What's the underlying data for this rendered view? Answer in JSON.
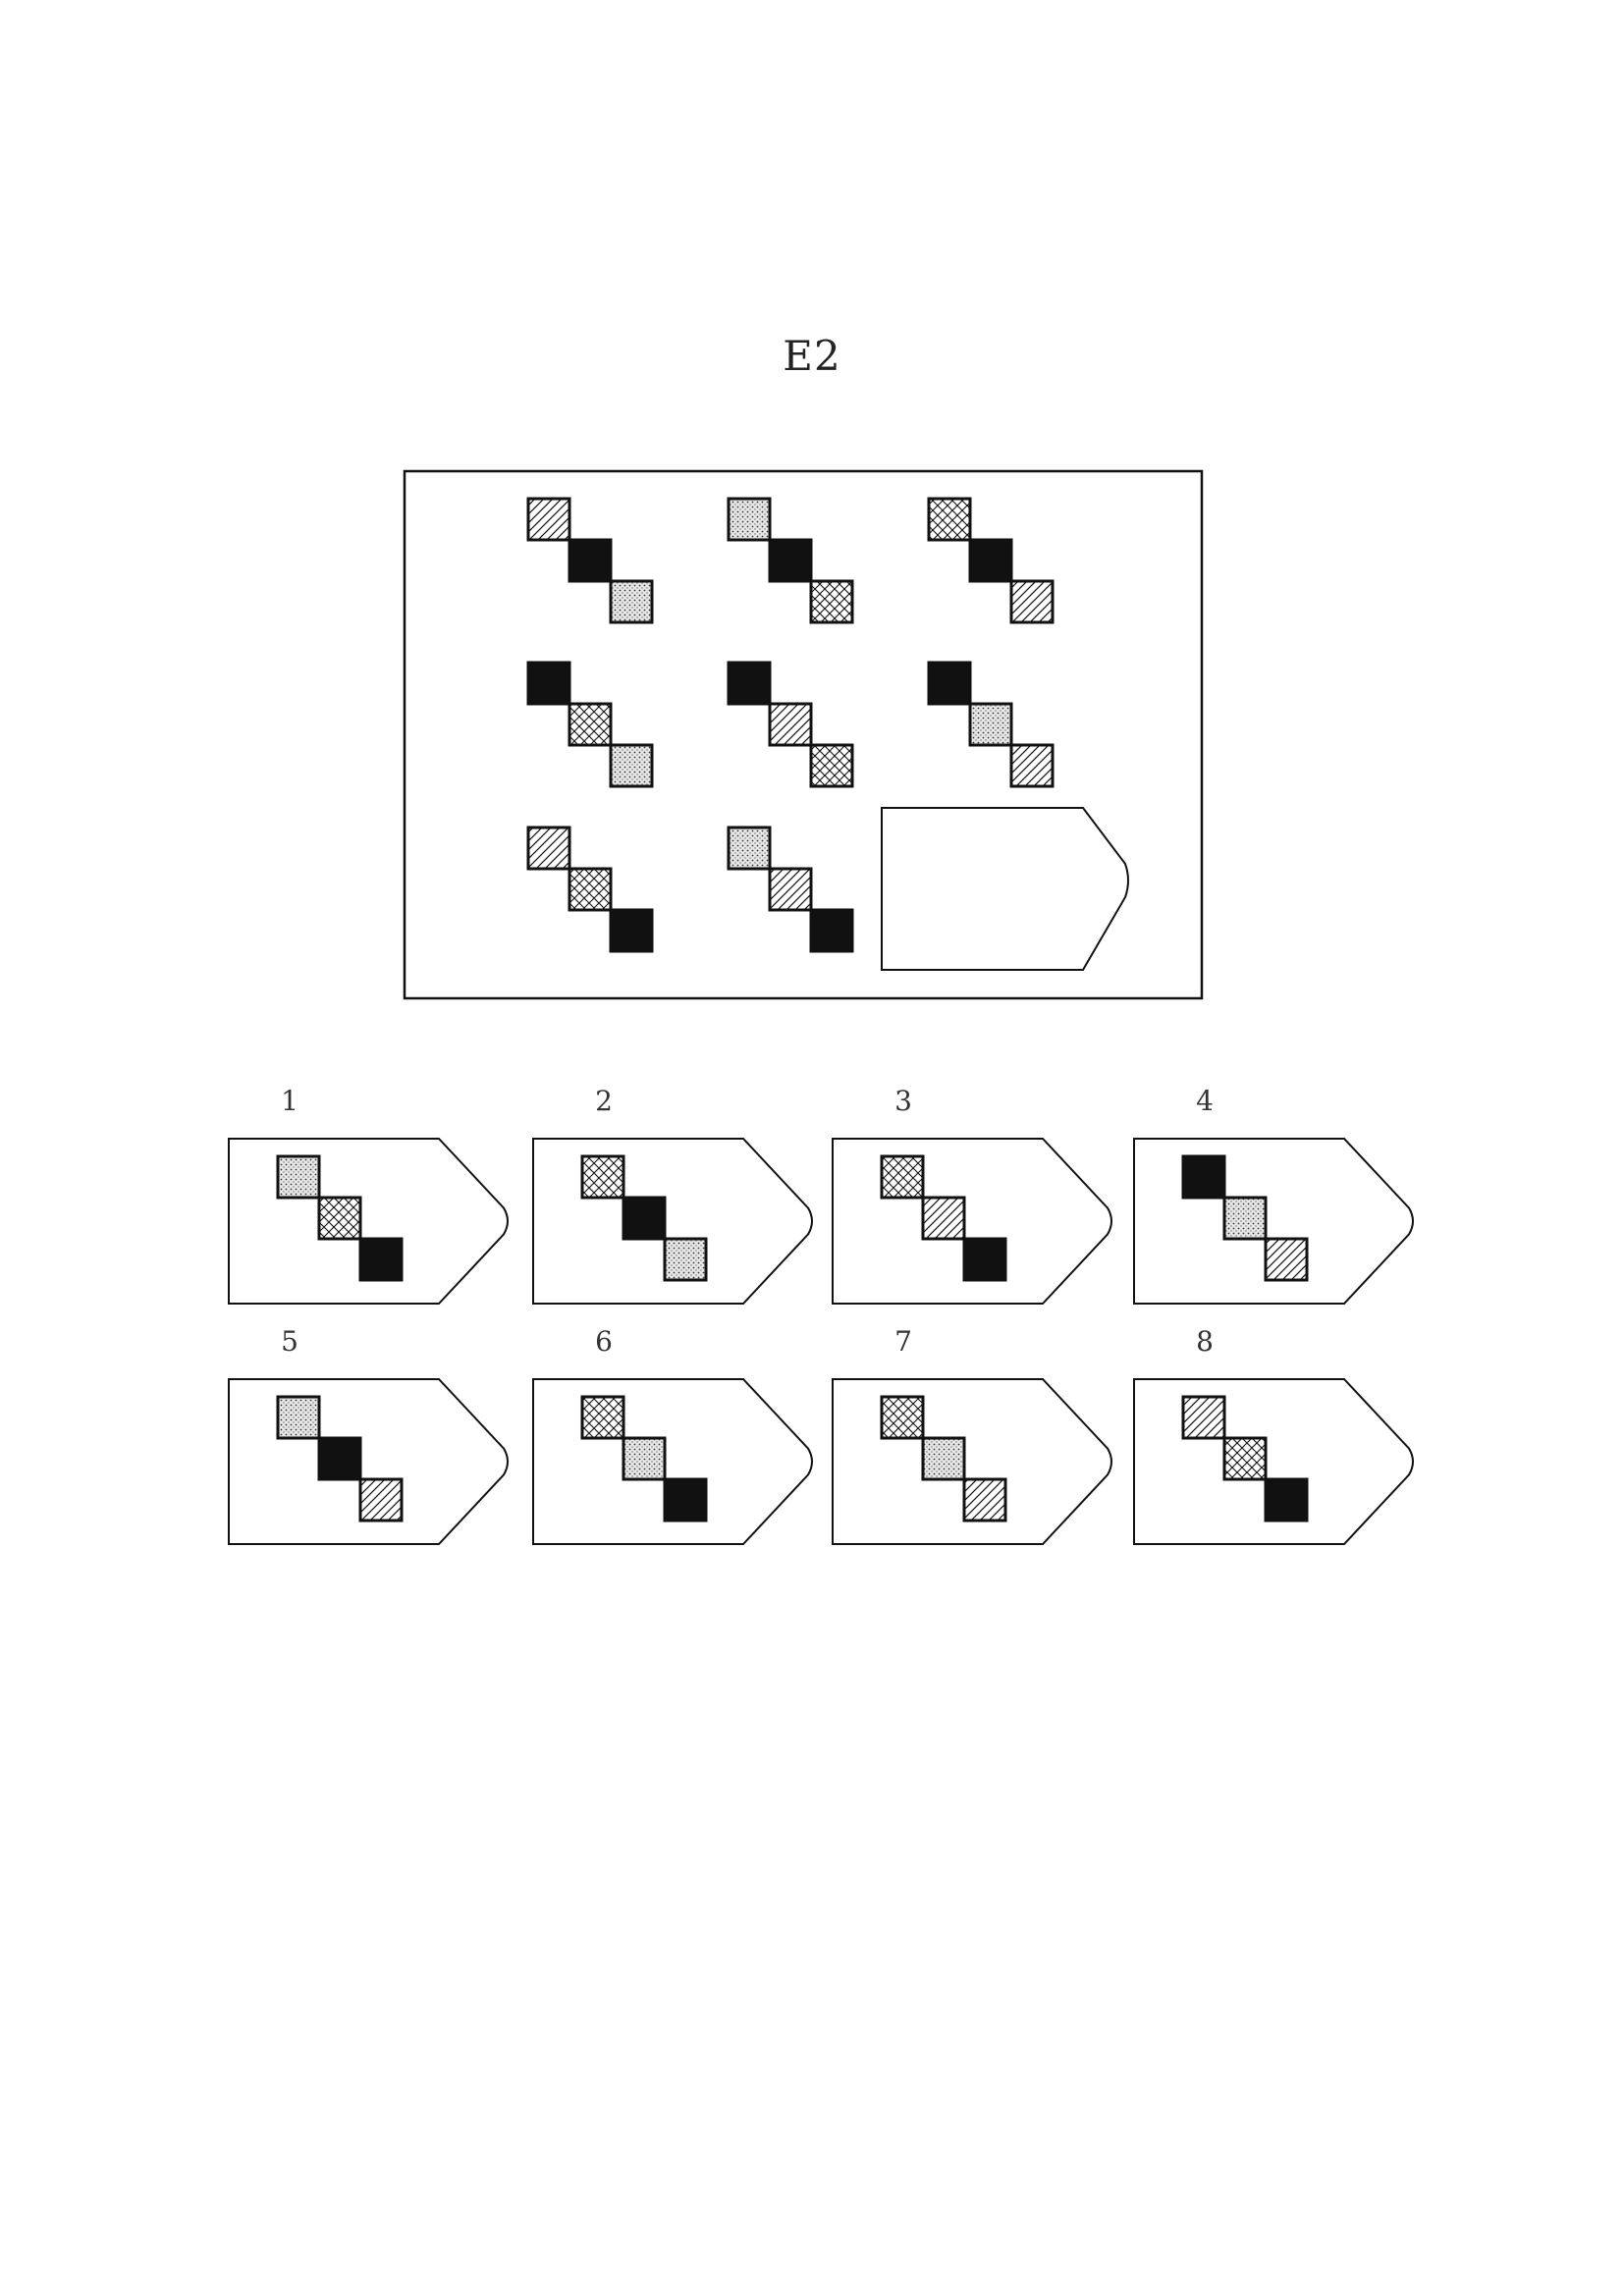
{
  "page": {
    "title": "E2"
  },
  "matrix": {
    "cells": [
      [
        "diag",
        "black",
        "dots"
      ],
      [
        "dots",
        "black",
        "cross"
      ],
      [
        "cross",
        "black",
        "diag"
      ],
      [
        "black",
        "cross",
        "dots"
      ],
      [
        "black",
        "diag",
        "cross"
      ],
      [
        "black",
        "dots",
        "diag"
      ],
      [
        "diag",
        "cross",
        "black"
      ],
      [
        "dots",
        "diag",
        "black"
      ],
      null
    ]
  },
  "options": [
    {
      "label": "1",
      "pattern": [
        "dots",
        "cross",
        "black"
      ]
    },
    {
      "label": "2",
      "pattern": [
        "cross",
        "black",
        "dots"
      ]
    },
    {
      "label": "3",
      "pattern": [
        "cross",
        "diag",
        "black"
      ]
    },
    {
      "label": "4",
      "pattern": [
        "black",
        "dots",
        "diag"
      ]
    },
    {
      "label": "5",
      "pattern": [
        "dots",
        "black",
        "diag"
      ]
    },
    {
      "label": "6",
      "pattern": [
        "cross",
        "dots",
        "black"
      ]
    },
    {
      "label": "7",
      "pattern": [
        "cross",
        "dots",
        "diag"
      ]
    },
    {
      "label": "8",
      "pattern": [
        "diag",
        "cross",
        "black"
      ]
    }
  ],
  "colors": {
    "ink": "#111111",
    "paper": "#ffffff"
  }
}
